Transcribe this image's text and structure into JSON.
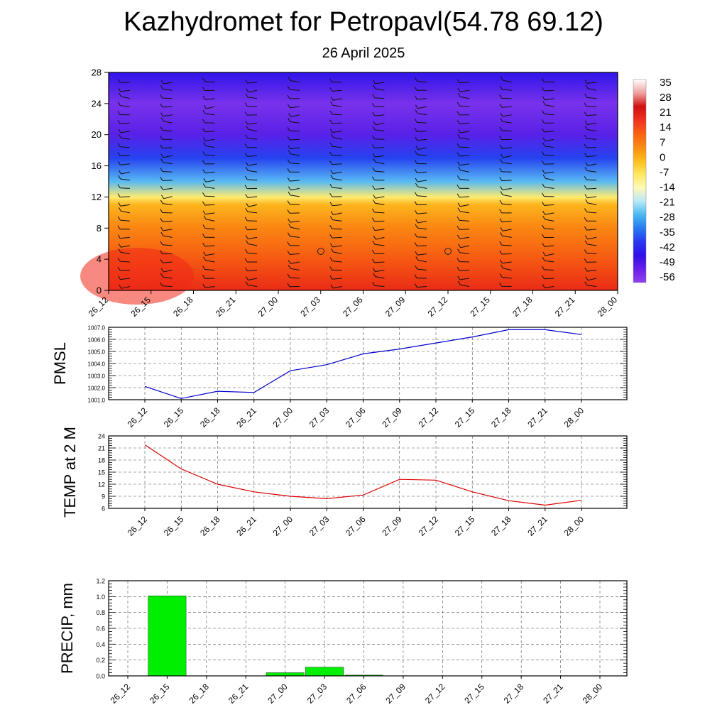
{
  "title": "Kazhydromet for Petropavl(54.78 69.12)",
  "subtitle": "26 April 2025",
  "chart_data": [
    {
      "type": "heatmap",
      "name": "vertical-temperature-section",
      "x_ticks": [
        "26_12",
        "26_15",
        "26_18",
        "26_21",
        "27_00",
        "27_03",
        "27_06",
        "27_09",
        "27_12",
        "27_15",
        "27_18",
        "27_21",
        "28_00"
      ],
      "y_ticks": [
        0,
        4,
        8,
        12,
        16,
        20,
        24,
        28
      ],
      "ylim": [
        0,
        28
      ],
      "colorbar_labels": [
        "35",
        "28",
        "21",
        "14",
        "7",
        "0",
        "-7",
        "-14",
        "-21",
        "-28",
        "-35",
        "-42",
        "-49",
        "-56"
      ],
      "colorbar_colors": [
        "#ffffff",
        "#f0a0a0",
        "#d01010",
        "#f03020",
        "#f86010",
        "#fb8a12",
        "#fcbe1c",
        "#fde860",
        "#fff8b8",
        "#b8e8f8",
        "#48b8f0",
        "#2878f0",
        "#2838f0",
        "#3010e8",
        "#6820e8",
        "#9040ee"
      ],
      "levels": [
        {
          "h": 0,
          "temp": 22
        },
        {
          "h": 4,
          "temp": 16
        },
        {
          "h": 8,
          "temp": 10
        },
        {
          "h": 11,
          "temp": 2
        },
        {
          "h": 12,
          "temp": -8
        },
        {
          "h": 14,
          "temp": -24
        },
        {
          "h": 17,
          "temp": -40
        },
        {
          "h": 20,
          "temp": -54
        },
        {
          "h": 24,
          "temp": -58
        },
        {
          "h": 28,
          "temp": -48
        }
      ]
    },
    {
      "type": "line",
      "name": "pmsl",
      "ylabel": "PMSL",
      "categories": [
        "26_12",
        "26_15",
        "26_18",
        "26_21",
        "27_00",
        "27_03",
        "27_06",
        "27_09",
        "27_12",
        "27_15",
        "27_18",
        "27_21",
        "28_00"
      ],
      "series": [
        {
          "values": [
            1002.1,
            1001.1,
            1001.7,
            1001.6,
            1003.4,
            1003.9,
            1004.8,
            1005.2,
            1005.7,
            1006.2,
            1006.8,
            1006.8,
            1006.4
          ],
          "color": "#0000cc"
        }
      ],
      "ylim": [
        1001.0,
        1007.0
      ],
      "y_ticks": [
        "1001.0",
        "1002.0",
        "1003.0",
        "1004.0",
        "1005.0",
        "1006.0",
        "1007.0"
      ]
    },
    {
      "type": "line",
      "name": "temp-2m",
      "ylabel": "TEMP at 2 M",
      "categories": [
        "26_12",
        "26_15",
        "26_18",
        "26_21",
        "27_00",
        "27_03",
        "27_06",
        "27_09",
        "27_12",
        "27_15",
        "27_18",
        "27_21",
        "28_00"
      ],
      "series": [
        {
          "values": [
            21.8,
            15.8,
            12.0,
            10.1,
            9.0,
            8.4,
            9.3,
            13.2,
            13.0,
            10.1,
            7.9,
            6.8,
            8.0
          ],
          "color": "#dd0000"
        }
      ],
      "ylim": [
        6,
        24
      ],
      "y_ticks": [
        "6",
        "9",
        "12",
        "15",
        "18",
        "21",
        "24"
      ]
    },
    {
      "type": "bar",
      "name": "precip",
      "ylabel": "PRECIP, mm",
      "categories": [
        "26_12",
        "26_15",
        "26_18",
        "26_21",
        "27_00",
        "27_03",
        "27_06",
        "27_09",
        "27_12",
        "27_15",
        "27_18",
        "27_21",
        "28_00"
      ],
      "values": [
        0,
        1.01,
        0,
        0,
        0.04,
        0.11,
        0.01,
        0,
        0,
        0,
        0,
        0,
        0
      ],
      "color": "#00ee00",
      "ylim": [
        0,
        1.2
      ],
      "y_ticks": [
        "0.0",
        "0.2",
        "0.4",
        "0.6",
        "0.8",
        "1.0",
        "1.2"
      ]
    }
  ]
}
